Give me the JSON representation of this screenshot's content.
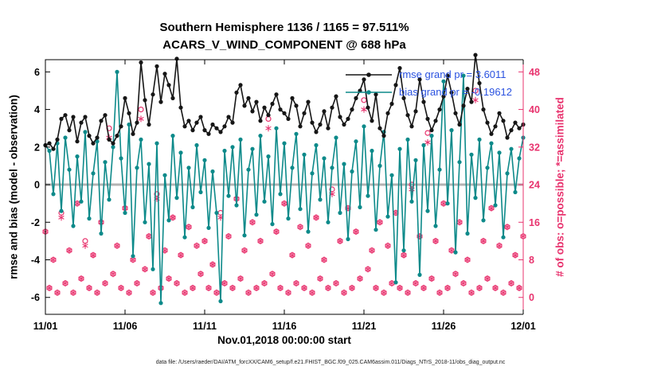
{
  "chart_data": {
    "type": "line",
    "title": "Southern Hemisphere 1136 / 1165 = 97.511%",
    "subtitle": "ACARS_V_WIND_COMPONENT @ 688 hPa",
    "xlabel": "Nov.01,2018 00:00:00 start",
    "ylabel_left": "rmse and bias (model - observation)",
    "ylabel_right": "# of obs: o=possible; *=assimilated",
    "footnote": "data file: /Users/raeder/DAI/ATM_forcXX/CAM6_setup/f.e21.FHIST_BGC.f09_025.CAM6assim.011/Diags_NTrS_2018-11/obs_diag_output.nc",
    "grid": false,
    "legend_position": "top-right-inside",
    "xlim_days": [
      0,
      30
    ],
    "ylim_left": [
      -6.9,
      6.65
    ],
    "ylim_right": [
      -3.6,
      50.6
    ],
    "right_axis": {
      "offset": 24,
      "scale": 4
    },
    "x_start": 0,
    "x_step": 0.25,
    "n_points": 121,
    "x_unit": "days since Nov 01, 2018 00:00",
    "xticks": [
      {
        "day": 0,
        "label": "11/01"
      },
      {
        "day": 5,
        "label": "11/06"
      },
      {
        "day": 10,
        "label": "11/11"
      },
      {
        "day": 15,
        "label": "11/16"
      },
      {
        "day": 20,
        "label": "11/21"
      },
      {
        "day": 25,
        "label": "11/26"
      },
      {
        "day": 30,
        "label": "12/01"
      }
    ],
    "yticks_left": [
      -6,
      -4,
      -2,
      0,
      2,
      4,
      6
    ],
    "yticks_right": [
      0,
      8,
      16,
      24,
      32,
      40,
      48
    ],
    "legend": [
      {
        "series": "rmse",
        "label": "rmse grand pr = 3.6011"
      },
      {
        "series": "bias",
        "label": "bias grand pr = -0.19612"
      }
    ],
    "colors": {
      "rmse": "#161616",
      "bias": "#0d8a8a",
      "obs": "#e8336e",
      "zero_line": "#b3b3b3",
      "legend_text": "#2a52e0",
      "axes": "#000000",
      "background": "#ffffff"
    },
    "series": [
      {
        "name": "rmse",
        "axis": "left",
        "marker": "filled-dot",
        "color": "#161616",
        "values": [
          2.1,
          2.2,
          1.9,
          2.4,
          3.5,
          3.7,
          2.9,
          3.6,
          2.3,
          3.3,
          3.6,
          2.6,
          2.2,
          2.5,
          3.4,
          3.7,
          2.4,
          2.2,
          2.6,
          3.1,
          4.6,
          3.8,
          2.7,
          3.3,
          6.5,
          4.5,
          3.2,
          4.8,
          6.3,
          4.4,
          5.9,
          5.3,
          4.6,
          6.7,
          4.1,
          3.1,
          3.4,
          2.9,
          3.3,
          3.6,
          2.9,
          2.7,
          3.2,
          3.0,
          2.8,
          3.1,
          3.6,
          3.3,
          4.9,
          5.3,
          4.2,
          4.6,
          3.9,
          4.4,
          3.4,
          4.1,
          3.7,
          4.3,
          4.8,
          4.0,
          3.8,
          3.5,
          4.6,
          4.2,
          3.1,
          3.8,
          4.4,
          3.3,
          2.8,
          3.2,
          3.9,
          3.0,
          4.1,
          4.7,
          3.6,
          3.2,
          3.5,
          4.0,
          4.6,
          5.0,
          5.6,
          4.1,
          3.4,
          4.8,
          3.0,
          2.6,
          3.8,
          4.3,
          5.3,
          6.2,
          4.6,
          3.7,
          3.1,
          3.9,
          5.6,
          4.4,
          3.5,
          2.9,
          3.4,
          4.0,
          4.7,
          5.8,
          4.9,
          3.8,
          3.2,
          4.2,
          5.1,
          4.4,
          6.9,
          5.4,
          4.0,
          3.3,
          2.7,
          3.1,
          3.8,
          3.4,
          2.5,
          2.9,
          3.3,
          3.0,
          3.2
        ]
      },
      {
        "name": "bias",
        "axis": "left",
        "marker": "filled-dot",
        "color": "#0d8a8a",
        "values": [
          2.1,
          1.8,
          -0.5,
          2.2,
          -1.4,
          2.5,
          0.8,
          -2.2,
          1.5,
          -0.9,
          2.8,
          -1.8,
          0.6,
          2.3,
          -2.6,
          1.2,
          -0.8,
          2.0,
          6.0,
          1.4,
          -1.5,
          3.2,
          -3.8,
          0.9,
          2.4,
          -2.0,
          1.1,
          -4.5,
          2.2,
          -6.3,
          0.5,
          -1.9,
          2.6,
          -0.7,
          1.7,
          -2.8,
          0.9,
          -1.2,
          2.1,
          -0.4,
          1.3,
          -2.3,
          0.7,
          -1.5,
          -6.2,
          1.8,
          -0.6,
          2.0,
          -1.1,
          2.4,
          -2.7,
          0.8,
          1.9,
          -1.6,
          2.6,
          -0.9,
          1.5,
          -2.1,
          3.0,
          -0.5,
          2.2,
          -1.8,
          0.9,
          2.7,
          -1.3,
          1.6,
          -2.5,
          0.6,
          2.1,
          -0.8,
          1.4,
          -2.0,
          0.9,
          2.5,
          -1.5,
          1.1,
          -2.9,
          0.7,
          2.3,
          -1.2,
          3.1,
          -0.6,
          1.8,
          -2.4,
          1.0,
          2.8,
          -1.7,
          0.5,
          -5.2,
          1.9,
          -3.5,
          2.4,
          -0.9,
          1.3,
          -4.8,
          2.1,
          -1.4,
          2.6,
          -2.2,
          0.8,
          5.5,
          -1.0,
          2.9,
          -3.6,
          1.2,
          5.8,
          -2.6,
          1.6,
          -0.7,
          2.4,
          -1.9,
          0.9,
          2.2,
          -1.1,
          1.7,
          -2.8,
          0.6,
          1.9,
          -0.4,
          1.4,
          2.5
        ]
      },
      {
        "name": "possible",
        "axis": "right",
        "marker": "open-circle",
        "color": "#e8336e",
        "values": [
          14,
          2,
          8,
          1,
          18,
          3,
          10,
          1,
          20,
          4,
          12,
          2,
          9,
          1,
          16,
          3,
          36,
          5,
          11,
          2,
          19,
          1,
          8,
          3,
          40,
          6,
          13,
          1,
          22,
          2,
          10,
          4,
          17,
          3,
          9,
          1,
          15,
          2,
          11,
          5,
          12,
          2,
          7,
          1,
          18,
          3,
          13,
          2,
          21,
          4,
          10,
          1,
          16,
          2,
          12,
          3,
          38,
          5,
          14,
          2,
          20,
          1,
          9,
          3,
          15,
          2,
          11,
          1,
          17,
          4,
          8,
          2,
          23,
          3,
          12,
          1,
          19,
          2,
          14,
          4,
          42,
          6,
          10,
          2,
          16,
          1,
          11,
          3,
          18,
          2,
          9,
          1,
          24,
          3,
          13,
          2,
          35,
          4,
          12,
          1,
          20,
          2,
          10,
          5,
          16,
          3,
          8,
          1,
          44,
          2,
          12,
          4,
          19,
          2,
          11,
          1,
          15,
          3,
          9,
          2,
          13
        ]
      },
      {
        "name": "assimilated",
        "axis": "right",
        "marker": "asterisk",
        "color": "#e8336e",
        "values": [
          14,
          2,
          8,
          1,
          17,
          3,
          10,
          1,
          20,
          4,
          11,
          2,
          9,
          1,
          16,
          3,
          34,
          5,
          11,
          2,
          19,
          1,
          8,
          3,
          38,
          6,
          13,
          1,
          21,
          2,
          10,
          4,
          17,
          3,
          9,
          1,
          15,
          2,
          11,
          5,
          12,
          2,
          7,
          1,
          17,
          3,
          13,
          2,
          21,
          4,
          10,
          1,
          16,
          2,
          12,
          3,
          36,
          5,
          14,
          2,
          20,
          1,
          9,
          3,
          15,
          2,
          11,
          1,
          17,
          4,
          8,
          2,
          22,
          3,
          12,
          1,
          19,
          2,
          14,
          4,
          40,
          6,
          10,
          2,
          16,
          1,
          11,
          3,
          18,
          2,
          9,
          1,
          23,
          3,
          13,
          2,
          33,
          4,
          12,
          1,
          20,
          2,
          10,
          5,
          16,
          3,
          8,
          1,
          42,
          2,
          12,
          4,
          19,
          2,
          11,
          1,
          15,
          3,
          9,
          2,
          13
        ]
      }
    ]
  }
}
